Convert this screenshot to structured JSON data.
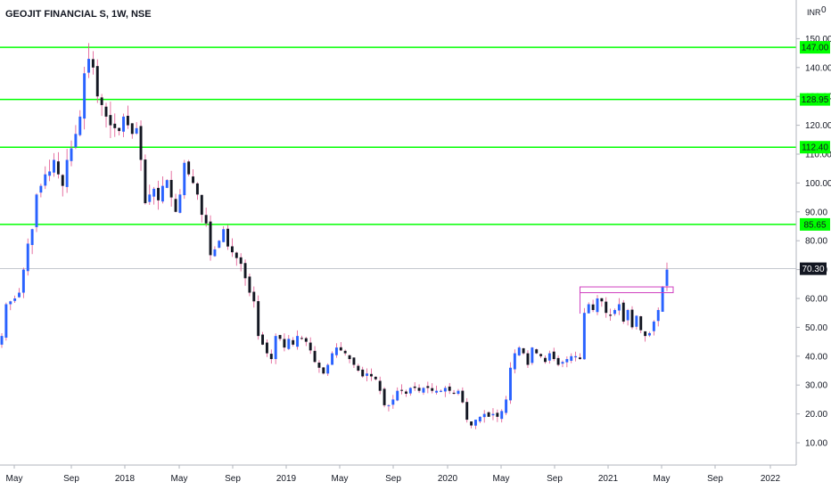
{
  "chart_data": {
    "type": "candlestick",
    "title": "GEOJIT FINANCIAL S, 1W, NSE",
    "currency": "INR",
    "currency_count": "0",
    "ylim": [
      0,
      157
    ],
    "x_tick_labels": [
      "May",
      "Sep",
      "2018",
      "May",
      "Sep",
      "2019",
      "May",
      "Sep",
      "2020",
      "May",
      "Sep",
      "2021",
      "May",
      "Sep",
      "2022"
    ],
    "y_ticks": [
      10,
      20,
      30,
      40,
      50,
      60,
      70,
      80,
      90,
      100,
      110,
      120,
      130,
      140,
      150
    ],
    "y_tick_labels": [
      "10.00",
      "20.00",
      "30.00",
      "40.00",
      "50.00",
      "60.00",
      "70.00",
      "80.00",
      "90.00",
      "100.00",
      "110.00",
      "120.00",
      "130.00",
      "140.00",
      "150.00"
    ],
    "horizontal_levels": [
      {
        "value": 147.0,
        "label": "147.00"
      },
      {
        "value": 128.95,
        "label": "128.95"
      },
      {
        "value": 112.4,
        "label": "112.40"
      },
      {
        "value": 85.65,
        "label": "85.65"
      }
    ],
    "last_price": {
      "value": 70.3,
      "label": "70.30"
    },
    "colors": {
      "up": "#2962ff",
      "down": "#131722",
      "wick": "#e0508c",
      "level": "#00ff00",
      "level_label_bg": "#00ff00",
      "box": "#d040c0",
      "last_price_bg": "#131722"
    },
    "closes": [
      47,
      58,
      59,
      60,
      62,
      70,
      79,
      84,
      96,
      99,
      103,
      104,
      108,
      103,
      99,
      108,
      112,
      117,
      123,
      138,
      143,
      140,
      130,
      127,
      123,
      120,
      119,
      118,
      123,
      120,
      117,
      119,
      108,
      93,
      96,
      98,
      94,
      99,
      101,
      95,
      90,
      96,
      107,
      103,
      100,
      96,
      89,
      86,
      75,
      77,
      80,
      84,
      78,
      76,
      74,
      72,
      67,
      62,
      59,
      47,
      44,
      41,
      39,
      47,
      46,
      43,
      46,
      44,
      47,
      46,
      45,
      42,
      38,
      36,
      34,
      37,
      41,
      43,
      42,
      41,
      39,
      37,
      35,
      33,
      34,
      33,
      32,
      28,
      23,
      23,
      25,
      28,
      28,
      27,
      29,
      29,
      28,
      29,
      29,
      28,
      28,
      28,
      29,
      28,
      27,
      28,
      24,
      18,
      16,
      18,
      19,
      20,
      19,
      20,
      19,
      21,
      25,
      36,
      41,
      43,
      41,
      37,
      43,
      41,
      40,
      38,
      41,
      39,
      37,
      38,
      39,
      40,
      40,
      39,
      55,
      58,
      56,
      60,
      59,
      55,
      54,
      56,
      58,
      52,
      56,
      50,
      54,
      49,
      47,
      48,
      52,
      56,
      64,
      70
    ],
    "box_annotation": {
      "top": 64,
      "bottom": 62,
      "label": ""
    }
  }
}
